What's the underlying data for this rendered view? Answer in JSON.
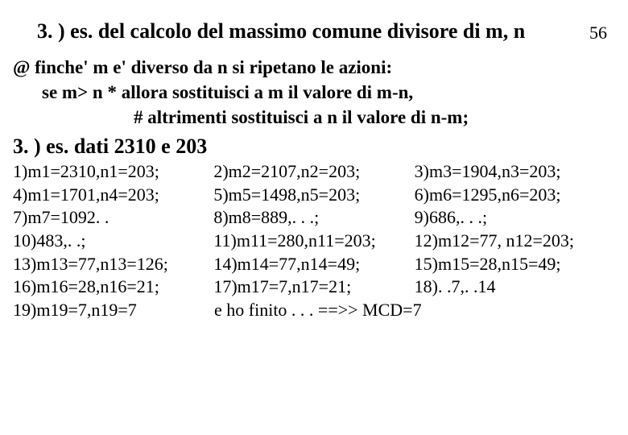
{
  "page_number": "56",
  "title": "3. ) es. del calcolo del massimo comune divisore di m, n",
  "algorithm": {
    "line1": "@ finche'  m  e' diverso  da n  si  ripetano le azioni:",
    "line2": "se m> n      * allora sostituisci a  m  il  valore di m-n,",
    "line3": "#  altrimenti sostituisci a n il valore di n-m;"
  },
  "subtitle": "3. ) es. dati  2310 e  203",
  "steps": {
    "r1c1": "1)m1=2310,n1=203;",
    "r1c2": "2)m2=2107,n2=203;",
    "r1c3": "3)m3=1904,n3=203;",
    "r2c1": "4)m1=1701,n4=203;",
    "r2c2": "5)m5=1498,n5=203;",
    "r2c3": "6)m6=1295,n6=203;",
    "r3c1": "7)m7=1092. .",
    "r3c2": "8)m8=889,. . .;",
    "r3c3": "9)686,. . .;",
    "r4c1": "10)483,. .;",
    "r4c2": "11)m11=280,n11=203;",
    "r4c3": "12)m12=77, n12=203;",
    "r5c1": "13)m13=77,n13=126;",
    "r5c2": "14)m14=77,n14=49;",
    "r5c3": "15)m15=28,n15=49;",
    "r6c1": "16)m16=28,n16=21;",
    "r6c2": "17)m17=7,n17=21;",
    "r6c3": "18). .7,. .14",
    "r7c1": "19)m19=7,n19=7",
    "r7rest": " e ho finito . . .  ==>>  MCD=7"
  }
}
